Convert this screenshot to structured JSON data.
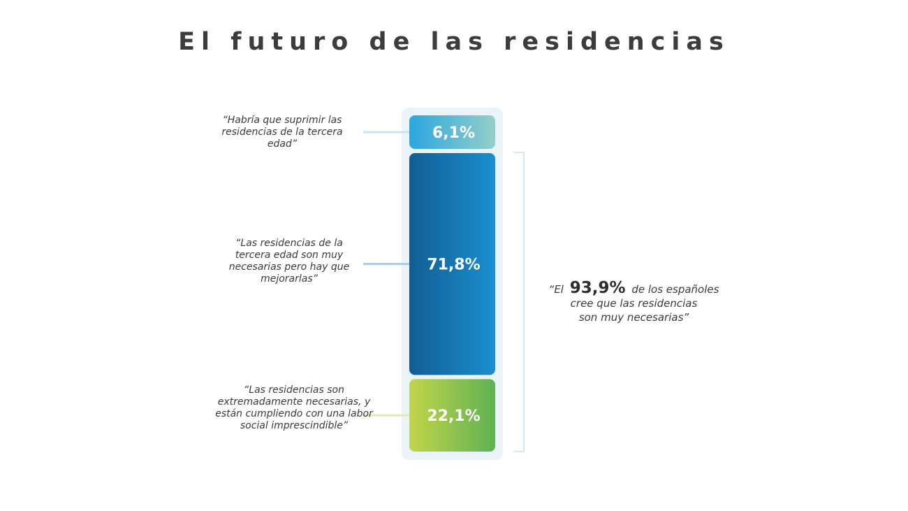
{
  "title": "El futuro de las residencias",
  "chart_data": {
    "type": "bar",
    "stacked": true,
    "orientation": "vertical",
    "categories": [
      "“Habría que suprimir las residencias de la tercera edad”",
      "“Las residencias de la tercera edad son muy necesarias pero hay que mejorarlas”",
      "“Las residencias son extremadamente necesarias, y están cumpliendo con una labor social imprescindible”"
    ],
    "values": [
      6.1,
      71.8,
      22.1
    ],
    "value_labels": [
      "6,1%",
      "71,8%",
      "22,1%"
    ],
    "colors": [
      [
        "#2aa6df",
        "#94cfc9"
      ],
      [
        "#125d93",
        "#1b8fcf"
      ],
      [
        "#c3d54b",
        "#5fb153"
      ]
    ],
    "annotation": {
      "prefix": "“El",
      "value": "93,9%",
      "suffix": "de los españoles",
      "line2": "cree que las residencias",
      "line3": "son muy necesarias”"
    }
  }
}
